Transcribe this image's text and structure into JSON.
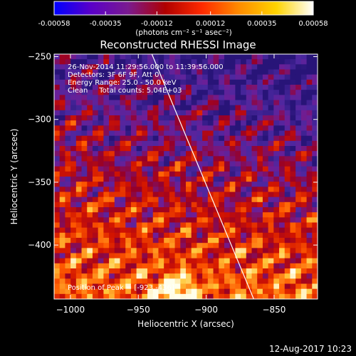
{
  "chart_data": {
    "type": "heatmap",
    "title": "Reconstructed RHESSI Image",
    "xlabel": "Heliocentric X (arcsec)",
    "ylabel": "Heliocentric Y (arcsec)",
    "xlim": [
      -1012,
      -818
    ],
    "ylim": [
      -443,
      -248
    ],
    "x_ticks": [
      -1000,
      -950,
      -900,
      -850
    ],
    "y_ticks": [
      -250,
      -300,
      -350,
      -400
    ],
    "colorbar": {
      "ticks": [
        -0.00058,
        -0.00035,
        -0.00012,
        0.00012,
        0.00035,
        0.00058
      ],
      "tick_labels": [
        "-0.00058",
        "-0.00035",
        "-0.00012",
        "0.00012",
        "0.00035",
        "0.00058"
      ],
      "unit_label": "(photons cm⁻² s⁻¹ asec⁻²)",
      "colors": [
        "#0000ff",
        "#5a00c8",
        "#7a1a8f",
        "#b00000",
        "#ff2a00",
        "#ff8c00",
        "#ffd400",
        "#ffffff"
      ]
    },
    "annotations": [
      "26-Nov-2014 11:29:56.000 to 11:39:56.000",
      "Detectors: 3F 6F 9F, Att 0",
      "Energy Range: 25.0 - 50.0 keV",
      "Clean     Total counts: 5.04E+03"
    ],
    "peak_label": "Position of Peak = [-923,-436]",
    "peak": {
      "x": -923,
      "y": -436
    },
    "limb_line": [
      [
        -940,
        -248
      ],
      [
        -865,
        -443
      ]
    ],
    "grid": false
  },
  "footer": {
    "timestamp": "12-Aug-2017 10:23"
  }
}
